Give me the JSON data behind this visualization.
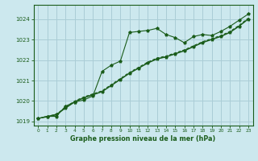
{
  "bg_color": "#cce8ee",
  "grid_color": "#aacdd6",
  "line_color": "#1a5c1a",
  "title": "Graphe pression niveau de la mer (hPa)",
  "xlim": [
    -0.5,
    23.5
  ],
  "ylim": [
    1018.8,
    1024.7
  ],
  "yticks": [
    1019,
    1020,
    1021,
    1022,
    1023,
    1024
  ],
  "xticks": [
    0,
    1,
    2,
    3,
    4,
    5,
    6,
    7,
    8,
    9,
    10,
    11,
    12,
    13,
    14,
    15,
    16,
    17,
    18,
    19,
    20,
    21,
    22,
    23
  ],
  "series1_x": [
    0,
    1,
    2,
    3,
    4,
    5,
    6,
    7,
    8,
    9,
    10,
    11,
    12,
    13,
    14,
    15,
    16,
    17,
    18,
    19,
    20,
    21,
    22,
    23
  ],
  "series1_y": [
    1019.15,
    1019.25,
    1019.25,
    1019.75,
    1019.95,
    1020.05,
    1020.25,
    1021.45,
    1021.75,
    1021.95,
    1023.35,
    1023.4,
    1023.45,
    1023.55,
    1023.25,
    1023.1,
    1022.85,
    1023.15,
    1023.25,
    1023.2,
    1023.4,
    1023.65,
    1023.95,
    1024.25
  ],
  "series2_x": [
    0,
    1,
    2,
    3,
    4,
    5,
    6,
    7,
    8,
    9,
    10,
    11,
    12,
    13,
    14,
    15,
    16,
    17,
    18,
    19,
    20,
    21,
    22,
    23
  ],
  "series2_y": [
    1019.15,
    1019.25,
    1019.35,
    1019.65,
    1019.95,
    1020.15,
    1020.3,
    1020.45,
    1020.75,
    1021.05,
    1021.35,
    1021.6,
    1021.85,
    1022.05,
    1022.15,
    1022.3,
    1022.45,
    1022.65,
    1022.85,
    1023.0,
    1023.15,
    1023.35,
    1023.65,
    1024.0
  ],
  "series3_x": [
    0,
    1,
    2,
    3,
    4,
    5,
    6,
    7,
    8,
    9,
    10,
    11,
    12,
    13,
    14,
    15,
    16,
    17,
    18,
    19,
    20,
    21,
    22,
    23
  ],
  "series3_y": [
    1019.15,
    1019.25,
    1019.35,
    1019.7,
    1020.0,
    1020.2,
    1020.35,
    1020.5,
    1020.8,
    1021.1,
    1021.4,
    1021.65,
    1021.9,
    1022.1,
    1022.2,
    1022.35,
    1022.5,
    1022.7,
    1022.9,
    1023.05,
    1023.2,
    1023.4,
    1023.7,
    1024.05
  ],
  "series4_x": [
    0,
    1,
    2,
    3,
    4,
    5,
    6,
    7,
    8,
    9,
    10,
    11,
    12,
    13,
    14,
    15,
    16,
    17,
    18,
    19,
    20,
    21,
    22,
    23
  ],
  "series4_y": [
    1019.15,
    1019.22,
    1019.32,
    1019.67,
    1019.97,
    1020.17,
    1020.32,
    1020.47,
    1020.77,
    1021.07,
    1021.37,
    1021.62,
    1021.87,
    1022.07,
    1022.17,
    1022.32,
    1022.47,
    1022.67,
    1022.87,
    1023.02,
    1023.17,
    1023.37,
    1023.67,
    1024.02
  ]
}
